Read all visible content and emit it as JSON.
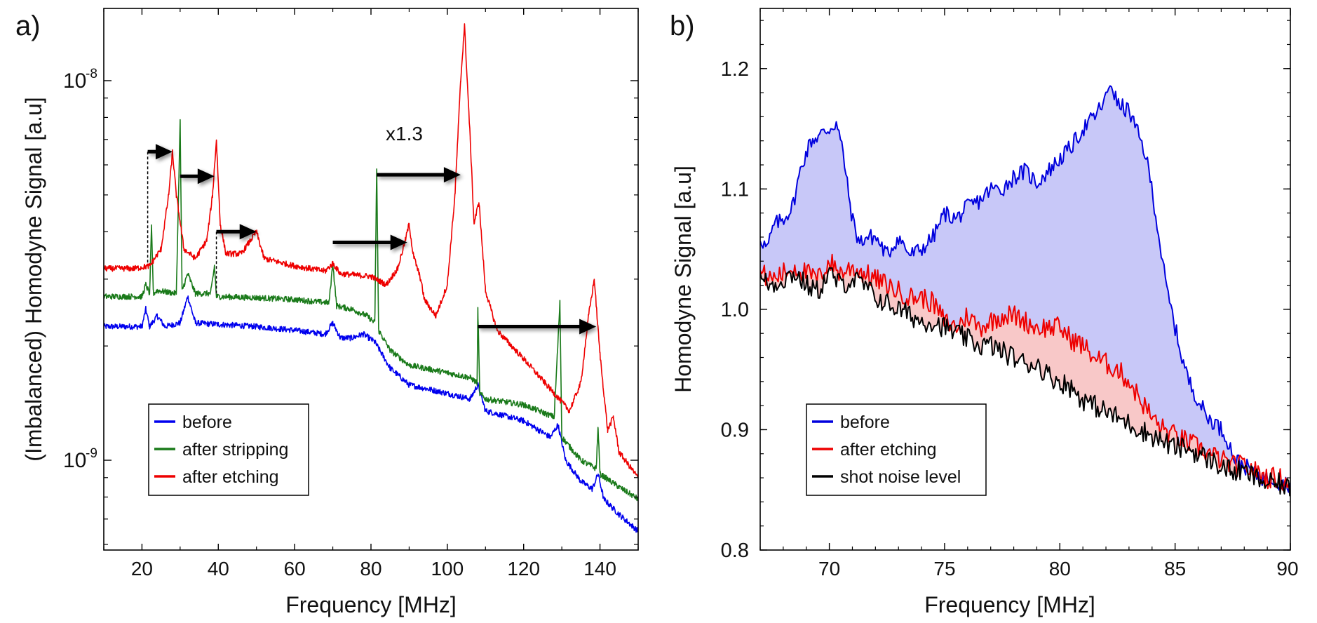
{
  "chart_data": [
    {
      "panel_label": "a)",
      "type": "line",
      "yscale": "log",
      "xlabel": "Frequency [MHz]",
      "ylabel": "(Imbalanced) Homodyne Signal [a.u]",
      "xlim": [
        10,
        150
      ],
      "ylim": [
        5.8e-10,
        1.55e-08
      ],
      "xticks": [
        20,
        40,
        60,
        80,
        100,
        120,
        140
      ],
      "xtick_labels": [
        "20",
        "40",
        "60",
        "80",
        "100",
        "120",
        "140"
      ],
      "ytick_labels": [
        {
          "value": 1e-08,
          "mantissa": "10",
          "exp": "-8"
        },
        {
          "value": 1e-09,
          "mantissa": "10",
          "exp": "-9"
        }
      ],
      "legend_position": "bottom-left",
      "annotation": "x1.3",
      "series": [
        {
          "name": "before",
          "color": "#0000ee",
          "points": [
            [
              10,
              2.25e-09
            ],
            [
              20,
              2.25e-09
            ],
            [
              21,
              2.5e-09
            ],
            [
              22,
              2.25e-09
            ],
            [
              24,
              2.4e-09
            ],
            [
              26,
              2.25e-09
            ],
            [
              30,
              2.3e-09
            ],
            [
              32,
              2.7e-09
            ],
            [
              34,
              2.3e-09
            ],
            [
              40,
              2.28e-09
            ],
            [
              50,
              2.25e-09
            ],
            [
              60,
              2.2e-09
            ],
            [
              68,
              2.15e-09
            ],
            [
              70,
              2.3e-09
            ],
            [
              72,
              2.1e-09
            ],
            [
              75,
              2.1e-09
            ],
            [
              78,
              2.15e-09
            ],
            [
              81,
              2.05e-09
            ],
            [
              85,
              1.75e-09
            ],
            [
              90,
              1.58e-09
            ],
            [
              100,
              1.5e-09
            ],
            [
              106,
              1.45e-09
            ],
            [
              108,
              1.58e-09
            ],
            [
              110,
              1.35e-09
            ],
            [
              120,
              1.27e-09
            ],
            [
              127,
              1.15e-09
            ],
            [
              129,
              1.24e-09
            ],
            [
              131,
              1e-09
            ],
            [
              135,
              8.8e-10
            ],
            [
              138,
              8.4e-10
            ],
            [
              139.5,
              9.2e-10
            ],
            [
              141,
              7.9e-10
            ],
            [
              145,
              7.2e-10
            ],
            [
              150,
              6.5e-10
            ]
          ]
        },
        {
          "name": "after stripping",
          "color": "#1a7a1a",
          "points": [
            [
              10,
              2.7e-09
            ],
            [
              20,
              2.7e-09
            ],
            [
              21,
              2.9e-09
            ],
            [
              22,
              2.75e-09
            ],
            [
              22.5,
              4.1e-09
            ],
            [
              23,
              2.75e-09
            ],
            [
              24,
              2.8e-09
            ],
            [
              29,
              2.75e-09
            ],
            [
              30,
              7.8e-09
            ],
            [
              30.5,
              2.8e-09
            ],
            [
              32,
              3.1e-09
            ],
            [
              34,
              2.75e-09
            ],
            [
              38,
              2.75e-09
            ],
            [
              39,
              3.25e-09
            ],
            [
              39.5,
              2.7e-09
            ],
            [
              50,
              2.68e-09
            ],
            [
              60,
              2.65e-09
            ],
            [
              69,
              2.6e-09
            ],
            [
              70,
              3.3e-09
            ],
            [
              71,
              2.55e-09
            ],
            [
              75,
              2.5e-09
            ],
            [
              79,
              2.4e-09
            ],
            [
              81,
              2.3e-09
            ],
            [
              81.5,
              5.9e-09
            ],
            [
              82,
              2.2e-09
            ],
            [
              85,
              1.95e-09
            ],
            [
              90,
              1.78e-09
            ],
            [
              100,
              1.7e-09
            ],
            [
              106,
              1.65e-09
            ],
            [
              107.8,
              1.6e-09
            ],
            [
              108,
              2.5e-09
            ],
            [
              108.5,
              1.5e-09
            ],
            [
              110,
              1.45e-09
            ],
            [
              120,
              1.4e-09
            ],
            [
              128,
              1.3e-09
            ],
            [
              129.5,
              2.6e-09
            ],
            [
              130,
              1.15e-09
            ],
            [
              135,
              1e-09
            ],
            [
              139,
              9.5e-10
            ],
            [
              139.5,
              1.22e-09
            ],
            [
              140,
              9.2e-10
            ],
            [
              145,
              8.5e-10
            ],
            [
              150,
              7.9e-10
            ]
          ]
        },
        {
          "name": "after etching",
          "color": "#ee0000",
          "points": [
            [
              10,
              3.2e-09
            ],
            [
              18,
              3.2e-09
            ],
            [
              22,
              3.25e-09
            ],
            [
              25,
              3.6e-09
            ],
            [
              27,
              5e-09
            ],
            [
              28,
              6.5e-09
            ],
            [
              29,
              5e-09
            ],
            [
              31,
              3.6e-09
            ],
            [
              34,
              3.4e-09
            ],
            [
              37,
              3.8e-09
            ],
            [
              38.5,
              5e-09
            ],
            [
              39.5,
              7e-09
            ],
            [
              40.5,
              4.2e-09
            ],
            [
              42,
              3.5e-09
            ],
            [
              46,
              3.5e-09
            ],
            [
              50,
              4e-09
            ],
            [
              52,
              3.4e-09
            ],
            [
              60,
              3.25e-09
            ],
            [
              68,
              3.15e-09
            ],
            [
              70,
              3.3e-09
            ],
            [
              72,
              3.1e-09
            ],
            [
              80,
              3.05e-09
            ],
            [
              84,
              2.9e-09
            ],
            [
              87,
              3.2e-09
            ],
            [
              89,
              3.8e-09
            ],
            [
              90,
              4.2e-09
            ],
            [
              91,
              3.5e-09
            ],
            [
              93,
              3e-09
            ],
            [
              94,
              2.65e-09
            ],
            [
              97,
              2.4e-09
            ],
            [
              100,
              2.9e-09
            ],
            [
              102,
              5e-09
            ],
            [
              103.5,
              1e-08
            ],
            [
              104.5,
              1.4e-08
            ],
            [
              106,
              7e-09
            ],
            [
              107,
              4.2e-09
            ],
            [
              108.3,
              4.8e-09
            ],
            [
              110,
              2.8e-09
            ],
            [
              113,
              2.2e-09
            ],
            [
              120,
              1.85e-09
            ],
            [
              128,
              1.5e-09
            ],
            [
              132,
              1.35e-09
            ],
            [
              135,
              1.6e-09
            ],
            [
              137,
              2.4e-09
            ],
            [
              138.5,
              3e-09
            ],
            [
              140,
              1.9e-09
            ],
            [
              142,
              1.2e-09
            ],
            [
              143.5,
              1.3e-09
            ],
            [
              145,
              1.05e-09
            ],
            [
              150,
              9e-10
            ]
          ]
        }
      ]
    },
    {
      "panel_label": "b)",
      "type": "area",
      "xlabel": "Frequency [MHz]",
      "ylabel": "Homodyne Signal [a.u]",
      "xlim": [
        67,
        90
      ],
      "ylim": [
        0.8,
        1.25
      ],
      "xticks": [
        70,
        75,
        80,
        85,
        90
      ],
      "xtick_labels": [
        "70",
        "75",
        "80",
        "85",
        "90"
      ],
      "yticks": [
        0.8,
        0.9,
        1.0,
        1.1,
        1.2
      ],
      "ytick_labels": [
        "0.8",
        "0.9",
        "1.0",
        "1.1",
        "1.2"
      ],
      "legend_position": "bottom-left",
      "series": [
        {
          "name": "before",
          "color": "#0000dd",
          "fill": "#c8c8f8",
          "x": [
            67,
            67.3,
            67.6,
            68,
            68.4,
            68.8,
            69.2,
            69.6,
            70,
            70.3,
            70.6,
            70.8,
            71,
            71.3,
            71.6,
            72,
            72.5,
            73,
            73.5,
            74,
            74.5,
            75,
            75.5,
            76,
            76.5,
            77,
            77.5,
            78,
            78.5,
            79,
            79.5,
            80,
            80.5,
            81,
            81.5,
            82,
            82.2,
            82.5,
            83,
            83.3,
            83.7,
            84,
            84.3,
            84.6,
            85,
            85.3,
            85.6,
            86,
            86.4,
            86.8,
            87.2,
            87.6,
            88,
            88.4,
            88.8,
            89.2,
            89.6,
            90
          ],
          "y": [
            1.06,
            1.05,
            1.07,
            1.075,
            1.085,
            1.12,
            1.14,
            1.145,
            1.15,
            1.155,
            1.13,
            1.1,
            1.075,
            1.055,
            1.06,
            1.06,
            1.045,
            1.06,
            1.045,
            1.05,
            1.06,
            1.08,
            1.075,
            1.085,
            1.09,
            1.1,
            1.1,
            1.11,
            1.115,
            1.105,
            1.115,
            1.125,
            1.135,
            1.15,
            1.16,
            1.175,
            1.19,
            1.17,
            1.165,
            1.15,
            1.13,
            1.1,
            1.06,
            1.02,
            0.985,
            0.96,
            0.94,
            0.925,
            0.91,
            0.905,
            0.895,
            0.875,
            0.87,
            0.865,
            0.86,
            0.86,
            0.855,
            0.855
          ]
        },
        {
          "name": "after etching",
          "color": "#ee0000",
          "fill": "#f8c8c8",
          "x": [
            67,
            67.5,
            68,
            68.5,
            69,
            69.5,
            70,
            70.5,
            71,
            71.5,
            72,
            72.5,
            73,
            73.5,
            74,
            74.5,
            75,
            75.5,
            76,
            76.5,
            77,
            77.5,
            78,
            78.5,
            79,
            79.5,
            80,
            80.5,
            81,
            81.5,
            82,
            82.5,
            83,
            83.5,
            84,
            84.5,
            85,
            85.5,
            86,
            86.5,
            87,
            87.5,
            88,
            88.5,
            89,
            89.5,
            90
          ],
          "y": [
            1.03,
            1.025,
            1.03,
            1.035,
            1.03,
            1.025,
            1.04,
            1.03,
            1.035,
            1.03,
            1.025,
            1.02,
            1.015,
            1.01,
            1.01,
            1.005,
            0.99,
            0.985,
            0.995,
            0.985,
            0.99,
            0.995,
            0.995,
            0.99,
            0.985,
            0.985,
            0.985,
            0.975,
            0.97,
            0.96,
            0.955,
            0.95,
            0.94,
            0.925,
            0.91,
            0.9,
            0.895,
            0.89,
            0.885,
            0.88,
            0.875,
            0.87,
            0.87,
            0.865,
            0.86,
            0.86,
            0.855
          ]
        },
        {
          "name": "shot noise level",
          "color": "#000000",
          "x": [
            67,
            67.5,
            68,
            68.5,
            69,
            69.5,
            70,
            70.5,
            71,
            71.5,
            72,
            72.5,
            73,
            73.5,
            74,
            74.5,
            75,
            75.5,
            76,
            76.5,
            77,
            77.5,
            78,
            78.5,
            79,
            79.5,
            80,
            80.5,
            81,
            81.5,
            82,
            82.5,
            83,
            83.5,
            84,
            84.5,
            85,
            85.5,
            86,
            86.5,
            87,
            87.5,
            88,
            88.5,
            89,
            89.5,
            90
          ],
          "y": [
            1.025,
            1.02,
            1.025,
            1.03,
            1.02,
            1.015,
            1.03,
            1.02,
            1.025,
            1.02,
            1.01,
            1.005,
            1.0,
            0.995,
            0.99,
            0.99,
            0.985,
            0.98,
            0.975,
            0.97,
            0.97,
            0.965,
            0.96,
            0.955,
            0.955,
            0.945,
            0.94,
            0.935,
            0.925,
            0.92,
            0.915,
            0.91,
            0.905,
            0.9,
            0.895,
            0.89,
            0.885,
            0.885,
            0.88,
            0.875,
            0.87,
            0.865,
            0.865,
            0.86,
            0.855,
            0.855,
            0.85
          ]
        }
      ]
    }
  ]
}
